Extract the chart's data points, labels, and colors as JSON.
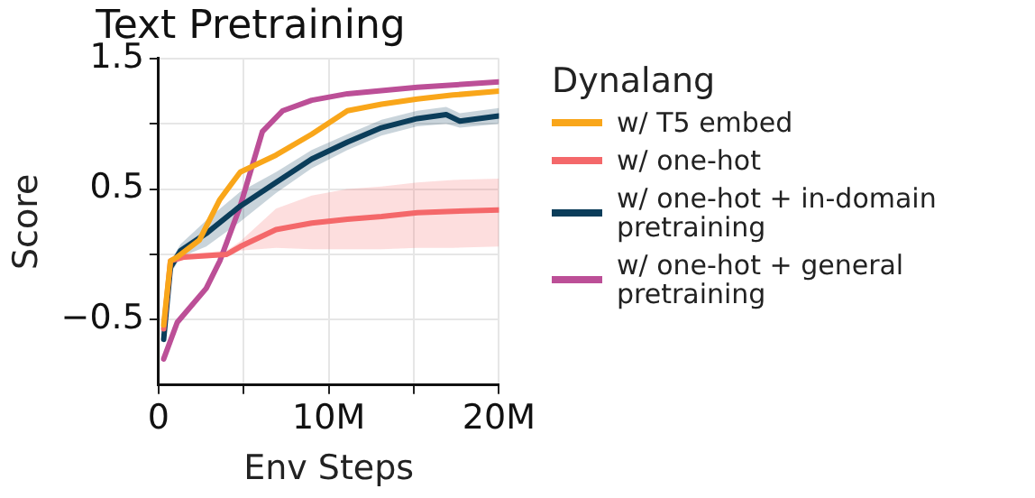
{
  "chart_data": {
    "type": "line",
    "title": "Text Pretraining",
    "xlabel": "Env Steps",
    "ylabel": "Score",
    "legend_title": "Dynalang",
    "legend": "right",
    "grid": true,
    "marker": "none",
    "line_style": "solid",
    "xlim": [
      0,
      20
    ],
    "xticks": [
      {
        "value": 0,
        "label": "0"
      },
      {
        "value": 5,
        "label": null
      },
      {
        "value": 10,
        "label": "10M"
      },
      {
        "value": 15,
        "label": null
      },
      {
        "value": 20,
        "label": "20M"
      }
    ],
    "ylim": [
      -1,
      1.5
    ],
    "yticks": [
      {
        "value": -0.5,
        "label": "−0.5"
      },
      {
        "value": 0,
        "label": null
      },
      {
        "value": 0.5,
        "label": "0.5"
      },
      {
        "value": 1,
        "label": null
      },
      {
        "value": 1.5,
        "label": "1.5"
      }
    ],
    "series": [
      {
        "name": "w/ T5 embed",
        "color": "#f9a61a",
        "x": [
          0.3,
          0.7,
          1.1,
          2.4,
          3.6,
          4.8,
          6.9,
          9.0,
          11.1,
          13.1,
          15.2,
          17.3,
          20
        ],
        "values": [
          -0.54,
          -0.05,
          -0.02,
          0.11,
          0.42,
          0.63,
          0.76,
          0.92,
          1.1,
          1.15,
          1.19,
          1.22,
          1.25
        ]
      },
      {
        "name": "w/ one-hot",
        "color": "#f4686a",
        "x": [
          0.3,
          0.7,
          1.5,
          4.0,
          4.8,
          6.9,
          9.0,
          11.1,
          13.1,
          15.2,
          17.3,
          20
        ],
        "values": [
          -0.57,
          -0.05,
          -0.02,
          0.0,
          0.06,
          0.19,
          0.24,
          0.27,
          0.29,
          0.32,
          0.33,
          0.34
        ],
        "lower": [
          -0.6,
          -0.08,
          -0.04,
          -0.02,
          0.03,
          0.05,
          0.04,
          0.04,
          0.04,
          0.05,
          0.05,
          0.06
        ],
        "upper": [
          -0.54,
          -0.02,
          0.0,
          0.03,
          0.1,
          0.35,
          0.45,
          0.5,
          0.52,
          0.55,
          0.57,
          0.58
        ]
      },
      {
        "name": "w/ one-hot + in-domain pretraining",
        "color": "#0b3d5a",
        "x": [
          0.3,
          0.7,
          1.3,
          2.8,
          4.8,
          6.9,
          9.0,
          11.1,
          13.1,
          15.2,
          16.9,
          17.7,
          20
        ],
        "values": [
          -0.65,
          -0.1,
          0.03,
          0.16,
          0.37,
          0.55,
          0.73,
          0.86,
          0.97,
          1.04,
          1.07,
          1.02,
          1.06
        ],
        "lower": [
          -0.7,
          -0.15,
          -0.02,
          0.06,
          0.25,
          0.47,
          0.66,
          0.8,
          0.91,
          0.98,
          1.0,
          0.97,
          1.0
        ],
        "upper": [
          -0.6,
          -0.05,
          0.08,
          0.26,
          0.48,
          0.63,
          0.8,
          0.92,
          1.03,
          1.1,
          1.13,
          1.08,
          1.12
        ]
      },
      {
        "name": "w/ one-hot + general pretraining",
        "color": "#bc4f97",
        "x": [
          0.3,
          1.1,
          2.8,
          3.6,
          4.8,
          6.1,
          7.3,
          9.0,
          11.1,
          15.2,
          20
        ],
        "values": [
          -0.8,
          -0.52,
          -0.26,
          -0.05,
          0.37,
          0.94,
          1.1,
          1.18,
          1.23,
          1.28,
          1.32
        ]
      }
    ]
  }
}
